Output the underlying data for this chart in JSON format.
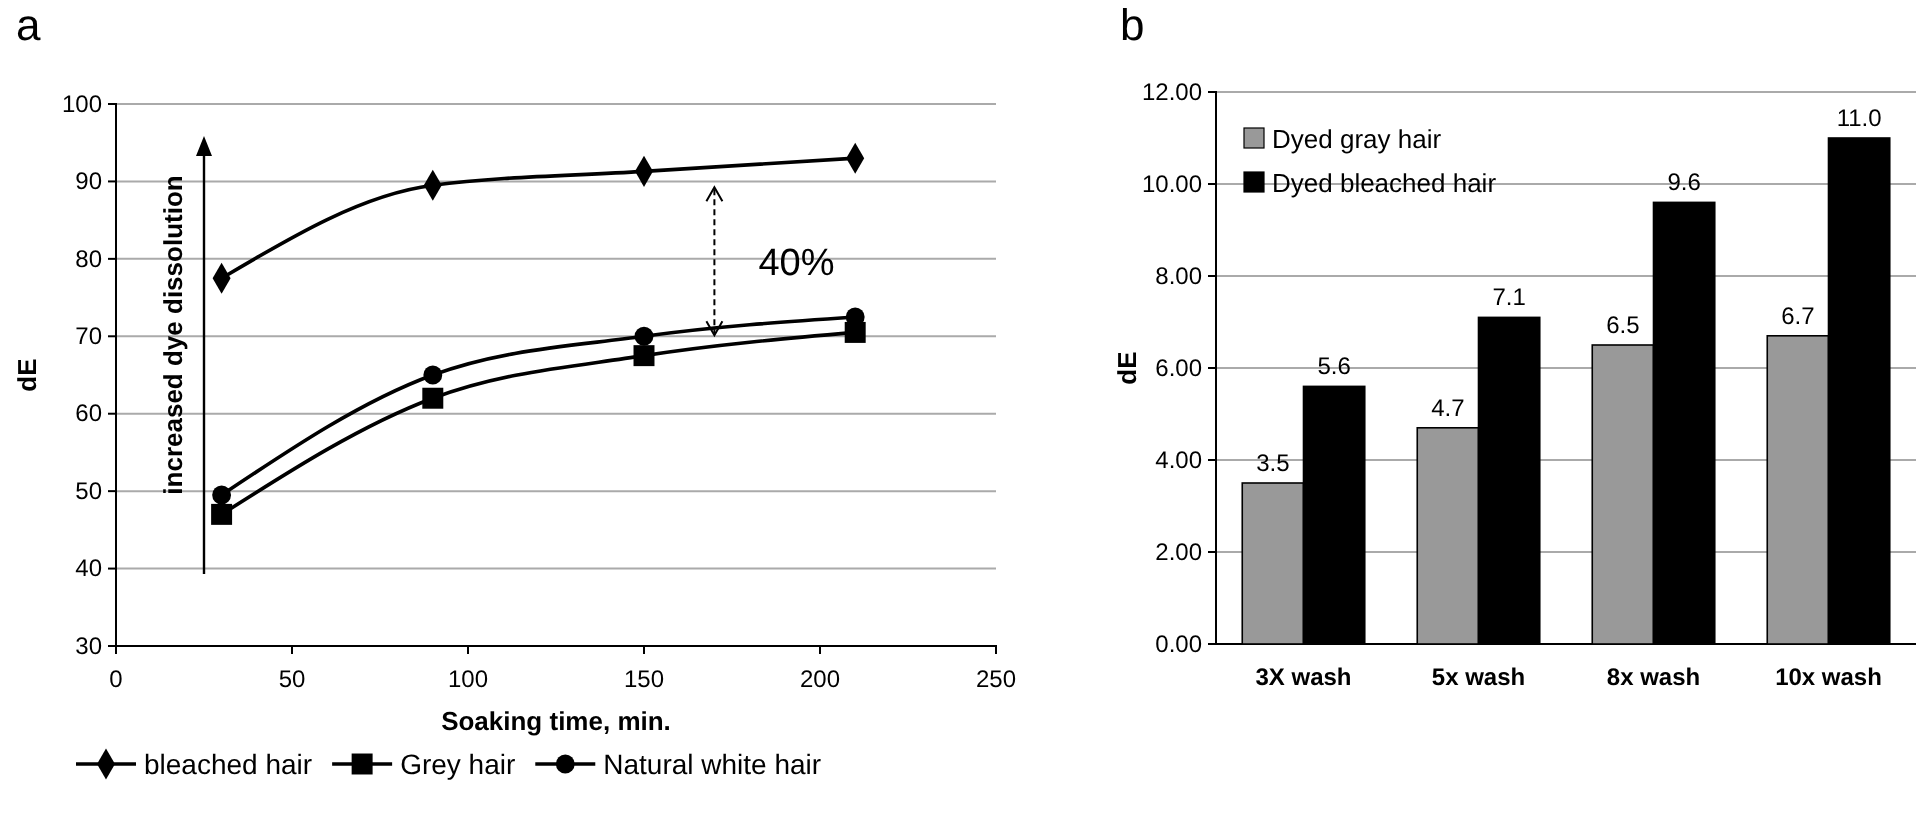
{
  "chart_data": [
    {
      "type": "line",
      "title": "a",
      "xlabel": "Soaking time, min.",
      "ylabel": "dE",
      "xlim": [
        0,
        250
      ],
      "xticks": [
        0,
        50,
        100,
        150,
        200,
        250
      ],
      "ylim": [
        30,
        100
      ],
      "yticks": [
        30,
        40,
        50,
        60,
        70,
        80,
        90,
        100
      ],
      "grid": "y",
      "legend": "bottom",
      "line_style": "solid",
      "annotations": [
        "increased dye dissolution",
        "40%"
      ],
      "series": [
        {
          "name": "bleached hair",
          "color": "#000000",
          "marker": "diamond",
          "x": [
            30,
            90,
            150,
            210
          ],
          "values": [
            77.5,
            89.5,
            91.3,
            93
          ]
        },
        {
          "name": "Grey hair",
          "color": "#000000",
          "marker": "square",
          "x": [
            30,
            90,
            150,
            210
          ],
          "values": [
            47,
            62,
            67.5,
            70.5
          ]
        },
        {
          "name": "Natural white hair",
          "color": "#000000",
          "marker": "circle",
          "x": [
            30,
            90,
            150,
            210
          ],
          "values": [
            49.5,
            65,
            70,
            72.5
          ]
        }
      ]
    },
    {
      "type": "bar",
      "title": "b",
      "ylabel": "dE",
      "categories": [
        "3X wash",
        "5x wash",
        "8x wash",
        "10x wash"
      ],
      "ylim": [
        0,
        12
      ],
      "yticks": [
        {
          "value": 0,
          "label": "0.00"
        },
        {
          "value": 2,
          "label": "2.00"
        },
        {
          "value": 4,
          "label": "4.00"
        },
        {
          "value": 6,
          "label": "6.00"
        },
        {
          "value": 8,
          "label": "8.00"
        },
        {
          "value": 10,
          "label": "10.00"
        },
        {
          "value": 12,
          "label": "12.00"
        }
      ],
      "grid": "y",
      "legend": "top left",
      "series": [
        {
          "name": "Dyed gray hair",
          "color": "#999999",
          "values": [
            3.5,
            4.7,
            6.5,
            6.7
          ],
          "value_labels": [
            "3.5",
            "4.7",
            "6.5",
            "6.7"
          ]
        },
        {
          "name": "Dyed bleached hair",
          "color": "#000000",
          "values": [
            5.6,
            7.1,
            9.6,
            11.0
          ],
          "value_labels": [
            "5.6",
            "7.1",
            "9.6",
            "11.0"
          ]
        }
      ]
    }
  ]
}
